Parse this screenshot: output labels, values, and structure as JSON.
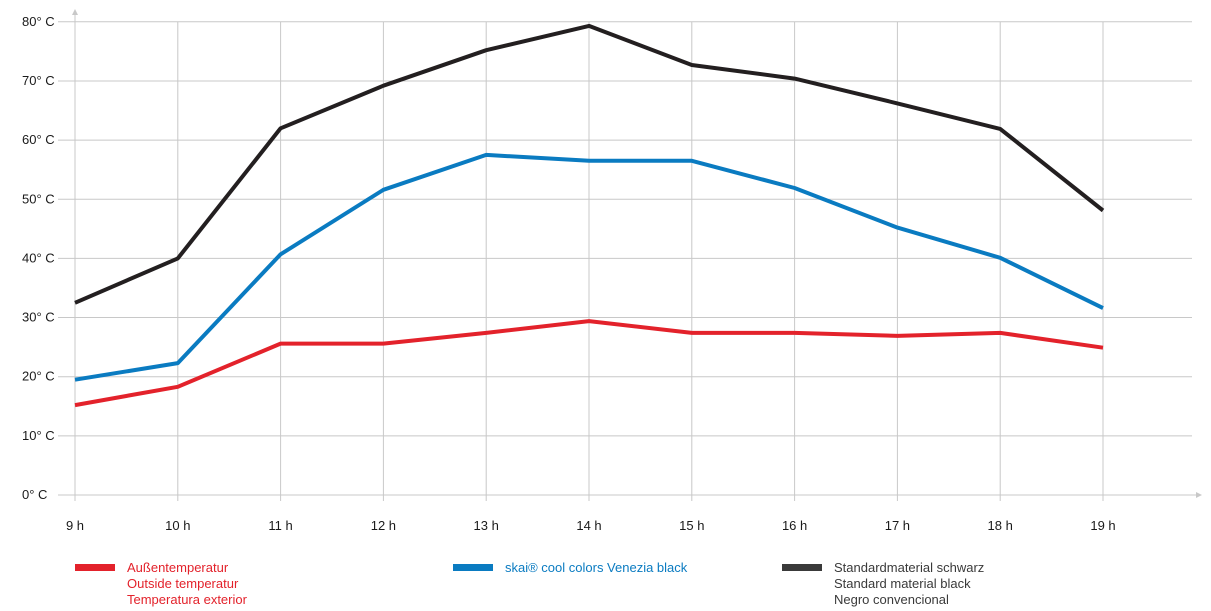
{
  "chart_data": {
    "type": "line",
    "categories": [
      "9 h",
      "10 h",
      "11 h",
      "12 h",
      "13 h",
      "14 h",
      "15 h",
      "16 h",
      "17 h",
      "18 h",
      "19 h"
    ],
    "y_tick_labels": [
      "0° C",
      "10° C",
      "20° C",
      "30° C",
      "40° C",
      "50° C",
      "60° C",
      "70° C",
      "80° C"
    ],
    "ylim": [
      0,
      80
    ],
    "grid": true,
    "legend_position": "bottom",
    "series": [
      {
        "name": "Außentemperatur",
        "name_lines": [
          "Außentemperatur",
          "Outside temperatur",
          "Temperatura exterior"
        ],
        "color": "#e3222b",
        "legend_color": "#e3222b",
        "values": [
          15.2,
          18.3,
          25.6,
          25.6,
          27.4,
          29.4,
          27.4,
          27.4,
          26.9,
          27.4,
          24.9
        ]
      },
      {
        "name": "skai® cool colors Venezia black",
        "name_lines": [
          "skai® cool colors Venezia black"
        ],
        "color": "#0a7bc1",
        "legend_color": "#0a7bc1",
        "values": [
          19.5,
          22.3,
          40.7,
          51.6,
          57.5,
          56.5,
          56.5,
          51.9,
          45.2,
          40.1,
          31.6
        ]
      },
      {
        "name": "Standardmaterial schwarz",
        "name_lines": [
          "Standardmaterial schwarz",
          "Standard material black",
          "Negro convencional"
        ],
        "color": "#231f20",
        "legend_color": "#3a3a3a",
        "values": [
          32.5,
          40.0,
          62.0,
          69.2,
          75.2,
          79.3,
          72.7,
          70.4,
          66.2,
          61.9,
          48.1
        ]
      }
    ]
  }
}
